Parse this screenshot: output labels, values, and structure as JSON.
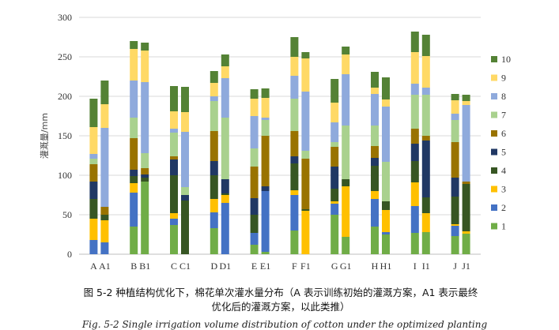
{
  "chart_data": {
    "type": "bar",
    "stacked": true,
    "ylabel": "灌溉量/mm",
    "ylim": [
      0,
      300
    ],
    "yticks": [
      0,
      50,
      100,
      150,
      200,
      250,
      300
    ],
    "grid": true,
    "legend_position": "right",
    "categories": [
      "A",
      "A1",
      "B",
      "B1",
      "C",
      "C1",
      "D",
      "D1",
      "E",
      "E1",
      "F",
      "F1",
      "G",
      "G1",
      "H",
      "H1",
      "I",
      "I1",
      "J",
      "J1"
    ],
    "series": [
      {
        "name": "1",
        "color": "#70ad47",
        "values": [
          0,
          0,
          35,
          92,
          37,
          0,
          33,
          0,
          12,
          3,
          30,
          0,
          50,
          22,
          35,
          25,
          27,
          28,
          23,
          26
        ]
      },
      {
        "name": "2",
        "color": "#4472c4",
        "values": [
          18,
          15,
          43,
          0,
          8,
          0,
          20,
          65,
          15,
          77,
          45,
          0,
          14,
          0,
          35,
          3,
          34,
          0,
          13,
          0
        ]
      },
      {
        "name": "3",
        "color": "#ffc000",
        "values": [
          27,
          28,
          12,
          0,
          7,
          0,
          17,
          10,
          0,
          0,
          6,
          55,
          3,
          64,
          10,
          28,
          30,
          24,
          2,
          3
        ]
      },
      {
        "name": "4",
        "color": "#375623",
        "values": [
          25,
          7,
          9,
          5,
          48,
          68,
          30,
          2,
          23,
          0,
          34,
          2,
          16,
          9,
          32,
          11,
          27,
          20,
          35,
          60
        ]
      },
      {
        "name": "5",
        "color": "#203864",
        "values": [
          22,
          0,
          8,
          4,
          20,
          7,
          18,
          18,
          21,
          6,
          9,
          0,
          28,
          0,
          10,
          0,
          22,
          72,
          24,
          0
        ]
      },
      {
        "name": "6",
        "color": "#997300",
        "values": [
          22,
          10,
          40,
          8,
          4,
          0,
          38,
          0,
          40,
          64,
          32,
          64,
          25,
          0,
          15,
          0,
          19,
          6,
          45,
          3
        ]
      },
      {
        "name": "7",
        "color": "#a9d18e",
        "values": [
          7,
          0,
          26,
          19,
          30,
          10,
          38,
          78,
          23,
          20,
          41,
          10,
          6,
          68,
          26,
          50,
          43,
          52,
          28,
          0
        ]
      },
      {
        "name": "8",
        "color": "#8faadc",
        "values": [
          6,
          100,
          47,
          90,
          5,
          70,
          6,
          50,
          41,
          3,
          29,
          75,
          25,
          65,
          40,
          70,
          14,
          9,
          8,
          97
        ]
      },
      {
        "name": "9",
        "color": "#ffd966",
        "values": [
          34,
          30,
          40,
          40,
          22,
          25,
          17,
          15,
          22,
          25,
          24,
          42,
          25,
          25,
          8,
          9,
          40,
          40,
          17,
          5
        ]
      },
      {
        "name": "10",
        "color": "#548235",
        "values": [
          36,
          30,
          10,
          10,
          32,
          32,
          15,
          15,
          12,
          12,
          25,
          8,
          30,
          10,
          20,
          28,
          26,
          27,
          8,
          8
        ]
      }
    ]
  },
  "caption": {
    "line1": "图 5-2  种植结构优化下，棉花单次灌水量分布（A 表示训练初始的灌溉方案，A1 表示最终",
    "line2": "优化后的灌溉方案，以此类推）",
    "english": "Fig. 5-2 Single irrigation volume distribution of cotton under the optimized planting"
  }
}
